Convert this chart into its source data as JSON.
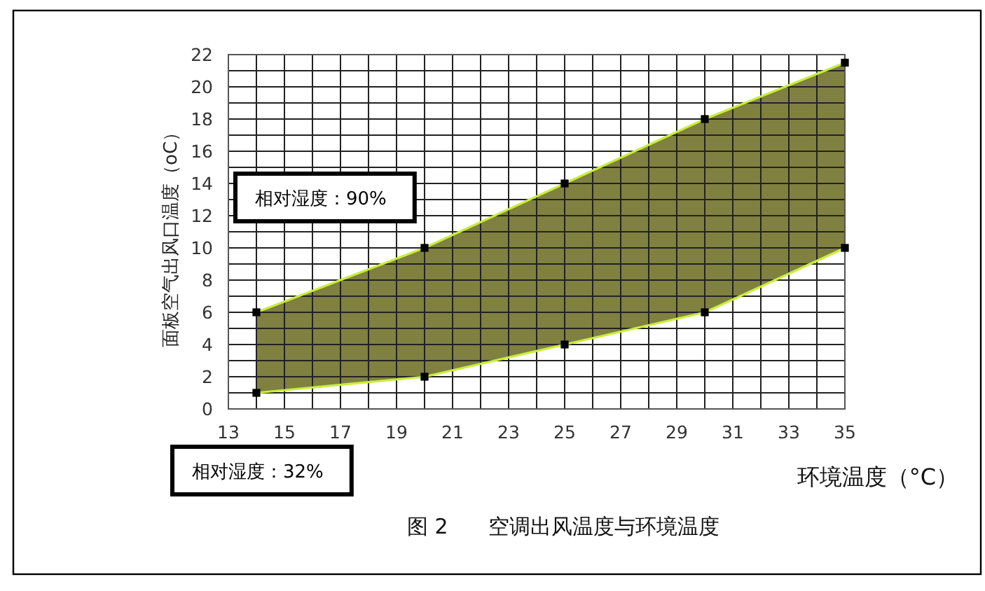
{
  "chart_data": {
    "type": "line",
    "title": "图 2      空调出风温度与环境温度",
    "xlabel": "环境温度（°C）",
    "ylabel": "面板空气出风口温度（oC）",
    "x": [
      14,
      20,
      25,
      30,
      35
    ],
    "xlim": [
      13,
      35
    ],
    "ylim": [
      0,
      22
    ],
    "xticks": [
      13,
      {
        "value": 14,
        "label": null
      },
      15,
      {
        "value": 16,
        "label": null
      },
      17,
      {
        "value": 18,
        "label": null
      },
      19,
      {
        "value": 20,
        "label": null
      },
      21,
      {
        "value": 22,
        "label": null
      },
      23,
      {
        "value": 24,
        "label": null
      },
      25,
      {
        "value": 26,
        "label": null
      },
      27,
      {
        "value": 28,
        "label": null
      },
      29,
      {
        "value": 30,
        "label": null
      },
      31,
      {
        "value": 32,
        "label": null
      },
      33,
      {
        "value": 34,
        "label": null
      },
      35
    ],
    "yticks": [
      0,
      {
        "value": 1,
        "label": null
      },
      2,
      {
        "value": 3,
        "label": null
      },
      4,
      {
        "value": 5,
        "label": null
      },
      6,
      {
        "value": 7,
        "label": null
      },
      8,
      {
        "value": 9,
        "label": null
      },
      10,
      {
        "value": 11,
        "label": null
      },
      12,
      {
        "value": 13,
        "label": null
      },
      14,
      {
        "value": 15,
        "label": null
      },
      16,
      {
        "value": 17,
        "label": null
      },
      18,
      {
        "value": 19,
        "label": null
      },
      20,
      {
        "value": 21,
        "label": null
      },
      22
    ],
    "grid": true,
    "marker": "square",
    "line_style": "solid",
    "series": [
      {
        "name": "相对湿度：90%",
        "color": "#c8ee3c",
        "values": [
          6,
          10,
          14,
          18,
          21.5
        ]
      },
      {
        "name": "相对湿度：32%",
        "color": "#c8ee3c",
        "values": [
          1,
          2,
          4,
          6,
          10
        ]
      },
      {
        "type": "area",
        "color": "#808040",
        "values": [
          null,
          null,
          null,
          null,
          null
        ],
        "lower": [
          1,
          2,
          4,
          6,
          10
        ],
        "upper": [
          6,
          10,
          14,
          18,
          21.5
        ]
      }
    ]
  }
}
